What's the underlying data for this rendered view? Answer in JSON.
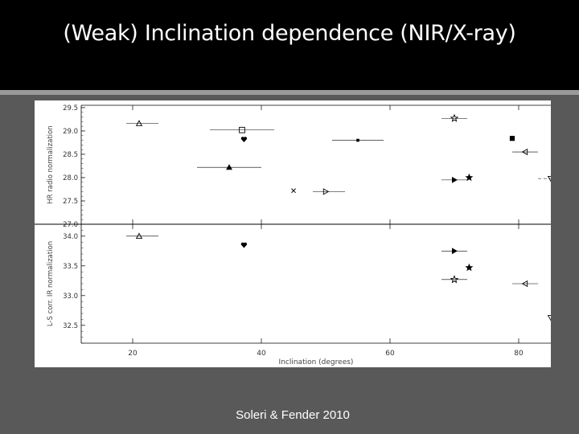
{
  "slide": {
    "title": "(Weak) Inclination dependence (NIR/X-ray)",
    "caption": "Soleri & Fender 2010"
  },
  "colors": {
    "background": "#595959",
    "title_bar": "#000000",
    "text": "#ffffff",
    "ink": "#000000"
  },
  "chart_data": {
    "type": "scatter",
    "xlabel": "Inclination (degrees)",
    "xlim": [
      12,
      85
    ],
    "x_ticks": [
      20,
      40,
      60,
      80
    ],
    "grid": false,
    "panels": [
      {
        "ylabel": "HR radio normalization",
        "ylim": [
          27.0,
          29.55
        ],
        "y_ticks": [
          27.0,
          27.5,
          28.0,
          28.5,
          29.0,
          29.5
        ],
        "points": [
          {
            "x": 21,
            "y": 29.16,
            "marker": "triangle-up-open",
            "xerr": [
              19,
              24
            ]
          },
          {
            "x": 37,
            "y": 29.02,
            "marker": "square-open",
            "xerr": [
              32,
              42
            ]
          },
          {
            "x": 37.3,
            "y": 28.82,
            "marker": "heart-filled"
          },
          {
            "x": 55,
            "y": 28.8,
            "marker": "square-filled-small",
            "xerr": [
              51,
              59
            ]
          },
          {
            "x": 70,
            "y": 29.27,
            "marker": "star-open",
            "xerr": [
              68,
              72
            ]
          },
          {
            "x": 79,
            "y": 28.84,
            "marker": "square-filled"
          },
          {
            "x": 81,
            "y": 28.55,
            "marker": "triangle-left-open",
            "xerr": [
              79,
              83
            ]
          },
          {
            "x": 35,
            "y": 28.22,
            "marker": "triangle-up-filled",
            "xerr": [
              30,
              40
            ]
          },
          {
            "x": 70,
            "y": 27.95,
            "marker": "triangle-right-filled",
            "xerr": [
              68,
              72
            ]
          },
          {
            "x": 72.3,
            "y": 28.0,
            "marker": "star-filled"
          },
          {
            "x": 85,
            "y": 27.98,
            "marker": "triangle-down-open",
            "xerr_dashed": [
              83,
              87
            ]
          },
          {
            "x": 45,
            "y": 27.72,
            "marker": "x-cross"
          },
          {
            "x": 50,
            "y": 27.7,
            "marker": "triangle-right-open",
            "xerr": [
              48,
              53
            ]
          }
        ]
      },
      {
        "ylabel": "L-S corr. IR normalization",
        "ylim": [
          32.2,
          34.2
        ],
        "y_ticks": [
          32.5,
          33.0,
          33.5,
          34.0
        ],
        "points": [
          {
            "x": 21,
            "y": 34.0,
            "marker": "triangle-up-open",
            "xerr": [
              19,
              24
            ]
          },
          {
            "x": 37.3,
            "y": 33.85,
            "marker": "heart-filled"
          },
          {
            "x": 70,
            "y": 33.75,
            "marker": "triangle-right-filled",
            "xerr": [
              68,
              72
            ]
          },
          {
            "x": 72.3,
            "y": 33.47,
            "marker": "star-filled"
          },
          {
            "x": 70,
            "y": 33.27,
            "marker": "star-open",
            "xerr": [
              68,
              72
            ]
          },
          {
            "x": 81,
            "y": 33.2,
            "marker": "triangle-left-open",
            "xerr": [
              79,
              83
            ]
          },
          {
            "x": 85,
            "y": 32.63,
            "marker": "triangle-down-open"
          }
        ]
      }
    ]
  }
}
